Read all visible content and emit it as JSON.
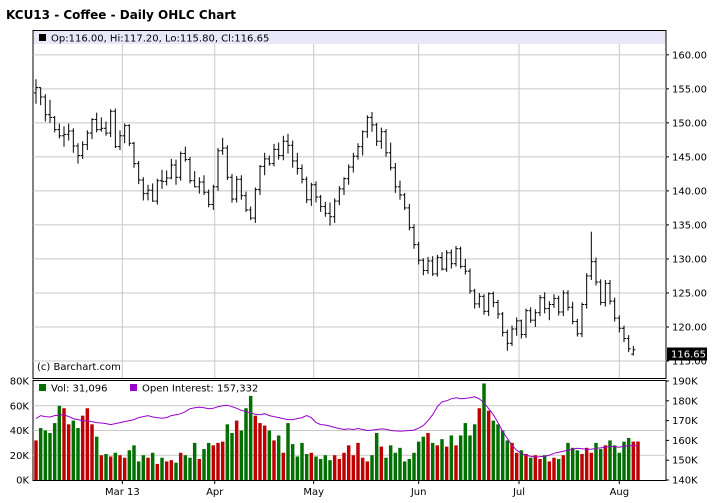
{
  "chart_data": {
    "type": "ohlc",
    "title": "KCU13 - Coffee - Daily OHLC Chart",
    "symbol": "KCU13",
    "last_quote": {
      "open": "116.00",
      "high": "117.20",
      "low": "115.80",
      "close": "116.65"
    },
    "info_line": "Op:116.00, Hi:117.20, Lo:115.80, Cl:116.65",
    "watermark": "(c) Barchart.com",
    "last_price_label": "116.65",
    "price_axis": {
      "ylim": [
        112.5,
        163.5
      ],
      "ticks": [
        "115.00",
        "120.00",
        "125.00",
        "130.00",
        "135.00",
        "140.00",
        "145.00",
        "150.00",
        "155.00",
        "160.00"
      ]
    },
    "x_axis": {
      "months": [
        {
          "label": "Mar 13",
          "day": 18.5
        },
        {
          "label": "Apr",
          "day": 38.3
        },
        {
          "label": "May",
          "day": 59.5
        },
        {
          "label": "Jun",
          "day": 82.0
        },
        {
          "label": "Jul",
          "day": 103.5
        },
        {
          "label": "Aug",
          "day": 125.0
        }
      ],
      "day_range": [
        0,
        129
      ]
    },
    "volume_axis": {
      "ylim": [
        0,
        80000
      ],
      "ticks": [
        "0K",
        "20K",
        "40K",
        "60K",
        "80K"
      ]
    },
    "oi_axis": {
      "ylim": [
        140000,
        190000
      ],
      "ticks": [
        "140K",
        "150K",
        "160K",
        "170K",
        "180K",
        "190K"
      ]
    },
    "volume_legend": "Vol: 31,096",
    "oi_legend": "Open Interest: 157,332",
    "colors": {
      "up_volume": "#c00000",
      "down_volume": "#007000",
      "open_interest": "#9900cc",
      "last_price_bg": "#000000",
      "panel_border": "#000000",
      "header_bg": "#e8e8f8"
    },
    "ohlc": [
      [
        154.4,
        156.4,
        152.8,
        155.2
      ],
      [
        155.2,
        155.2,
        152.6,
        153.8
      ],
      [
        153.8,
        154.2,
        150.2,
        151.2
      ],
      [
        151.2,
        153.4,
        150.0,
        150.8
      ],
      [
        150.8,
        151.0,
        148.6,
        149.0
      ],
      [
        149.0,
        149.9,
        147.7,
        148.1
      ],
      [
        148.1,
        149.5,
        146.5,
        148.3
      ],
      [
        148.3,
        149.9,
        147.4,
        148.8
      ],
      [
        148.8,
        149.2,
        145.6,
        146.6
      ],
      [
        146.6,
        147.0,
        144.0,
        145.2
      ],
      [
        145.2,
        147.3,
        144.7,
        146.8
      ],
      [
        146.8,
        148.9,
        146.0,
        148.5
      ],
      [
        148.5,
        150.7,
        147.6,
        150.5
      ],
      [
        150.5,
        151.5,
        148.6,
        149.0
      ],
      [
        149.0,
        150.8,
        148.7,
        149.2
      ],
      [
        149.2,
        150.2,
        148.1,
        148.5
      ],
      [
        148.5,
        152.0,
        147.9,
        151.7
      ],
      [
        151.7,
        152.1,
        146.3,
        146.5
      ],
      [
        146.5,
        148.9,
        146.0,
        148.1
      ],
      [
        148.1,
        149.9,
        147.0,
        149.6
      ],
      [
        149.6,
        149.8,
        146.6,
        147.0
      ],
      [
        147.0,
        147.2,
        143.4,
        144.0
      ],
      [
        144.0,
        144.4,
        141.0,
        141.6
      ],
      [
        141.6,
        142.0,
        138.6,
        139.6
      ],
      [
        139.6,
        140.9,
        138.6,
        140.1
      ],
      [
        140.1,
        141.1,
        138.4,
        138.5
      ],
      [
        138.5,
        141.8,
        138.0,
        141.5
      ],
      [
        141.5,
        143.1,
        140.3,
        141.4
      ],
      [
        141.4,
        143.0,
        140.8,
        141.9
      ],
      [
        141.9,
        144.7,
        141.7,
        143.8
      ],
      [
        143.8,
        144.6,
        140.9,
        142.0
      ],
      [
        142.0,
        145.8,
        141.5,
        145.5
      ],
      [
        145.5,
        146.5,
        144.3,
        144.6
      ],
      [
        144.6,
        145.0,
        141.1,
        141.5
      ],
      [
        141.5,
        142.9,
        140.5,
        140.6
      ],
      [
        140.6,
        142.0,
        139.6,
        141.3
      ],
      [
        141.3,
        142.3,
        139.4,
        139.8
      ],
      [
        139.8,
        140.2,
        137.6,
        138.0
      ],
      [
        138.0,
        140.9,
        137.2,
        140.6
      ],
      [
        140.6,
        146.3,
        140.0,
        145.9
      ],
      [
        145.9,
        147.8,
        145.3,
        146.3
      ],
      [
        146.3,
        146.7,
        141.6,
        142.0
      ],
      [
        142.0,
        142.5,
        138.3,
        138.8
      ],
      [
        138.8,
        142.2,
        138.3,
        141.7
      ],
      [
        141.7,
        142.3,
        138.7,
        139.3
      ],
      [
        139.3,
        139.9,
        136.9,
        137.2
      ],
      [
        137.2,
        137.7,
        135.7,
        136.0
      ],
      [
        136.0,
        140.5,
        135.3,
        140.2
      ],
      [
        140.2,
        143.8,
        139.4,
        143.6
      ],
      [
        143.6,
        145.6,
        142.3,
        144.7
      ],
      [
        144.7,
        145.2,
        143.7,
        144.0
      ],
      [
        144.0,
        146.9,
        143.6,
        146.1
      ],
      [
        146.1,
        147.1,
        144.6,
        145.2
      ],
      [
        145.2,
        148.1,
        144.5,
        147.3
      ],
      [
        147.3,
        148.4,
        145.5,
        146.7
      ],
      [
        146.7,
        147.4,
        143.4,
        144.4
      ],
      [
        144.4,
        145.6,
        142.4,
        143.3
      ],
      [
        143.3,
        143.9,
        141.1,
        141.7
      ],
      [
        141.7,
        142.1,
        138.2,
        138.7
      ],
      [
        138.7,
        141.2,
        137.8,
        140.9
      ],
      [
        140.9,
        141.4,
        138.3,
        139.1
      ],
      [
        139.1,
        139.4,
        136.9,
        137.7
      ],
      [
        137.7,
        138.4,
        136.2,
        136.7
      ],
      [
        136.7,
        138.3,
        134.9,
        136.2
      ],
      [
        136.2,
        138.9,
        135.3,
        138.5
      ],
      [
        138.5,
        140.7,
        137.9,
        140.3
      ],
      [
        140.3,
        142.0,
        139.4,
        141.8
      ],
      [
        141.8,
        143.9,
        140.9,
        143.5
      ],
      [
        143.5,
        145.6,
        142.7,
        145.1
      ],
      [
        145.1,
        147.0,
        144.6,
        146.5
      ],
      [
        146.5,
        148.9,
        145.2,
        148.7
      ],
      [
        148.7,
        151.1,
        147.8,
        150.8
      ],
      [
        150.8,
        151.6,
        148.7,
        149.7
      ],
      [
        149.7,
        150.0,
        146.6,
        147.3
      ],
      [
        147.3,
        149.3,
        146.2,
        148.7
      ],
      [
        148.7,
        149.1,
        145.0,
        145.6
      ],
      [
        145.6,
        147.1,
        143.0,
        143.4
      ],
      [
        143.4,
        144.1,
        139.7,
        140.6
      ],
      [
        140.6,
        141.5,
        138.7,
        139.4
      ],
      [
        139.4,
        139.7,
        137.2,
        137.5
      ],
      [
        137.5,
        138.1,
        134.2,
        134.6
      ],
      [
        134.6,
        135.1,
        131.5,
        132.1
      ],
      [
        132.1,
        132.5,
        129.2,
        129.8
      ],
      [
        129.8,
        130.1,
        127.6,
        128.3
      ],
      [
        128.3,
        130.3,
        127.8,
        129.7
      ],
      [
        129.7,
        130.4,
        127.5,
        127.8
      ],
      [
        127.8,
        130.6,
        127.4,
        130.2
      ],
      [
        130.2,
        131.0,
        128.3,
        128.5
      ],
      [
        128.5,
        131.3,
        128.1,
        130.9
      ],
      [
        130.9,
        131.4,
        128.6,
        129.3
      ],
      [
        129.3,
        131.9,
        128.9,
        131.5
      ],
      [
        131.5,
        131.8,
        128.6,
        128.9
      ],
      [
        128.9,
        130.0,
        127.7,
        128.2
      ],
      [
        128.2,
        128.6,
        124.9,
        125.3
      ],
      [
        125.3,
        125.6,
        122.7,
        123.4
      ],
      [
        123.4,
        125.0,
        122.8,
        124.5
      ],
      [
        124.5,
        124.8,
        121.8,
        122.3
      ],
      [
        122.3,
        125.1,
        121.6,
        124.9
      ],
      [
        124.9,
        125.2,
        122.9,
        123.6
      ],
      [
        123.6,
        124.0,
        121.2,
        121.9
      ],
      [
        121.9,
        122.2,
        118.6,
        119.2
      ],
      [
        119.2,
        119.6,
        116.5,
        117.6
      ],
      [
        117.6,
        120.2,
        117.2,
        119.7
      ],
      [
        119.7,
        121.4,
        118.7,
        120.9
      ],
      [
        120.9,
        121.1,
        118.3,
        118.9
      ],
      [
        118.9,
        122.7,
        118.4,
        122.4
      ],
      [
        122.4,
        122.9,
        120.6,
        121.0
      ],
      [
        121.0,
        122.6,
        120.0,
        122.1
      ],
      [
        122.1,
        124.7,
        121.6,
        124.3
      ],
      [
        124.3,
        125.1,
        122.0,
        122.7
      ],
      [
        122.7,
        123.8,
        121.0,
        123.3
      ],
      [
        123.3,
        124.8,
        122.8,
        124.2
      ],
      [
        124.2,
        124.6,
        121.7,
        122.2
      ],
      [
        122.2,
        125.4,
        121.6,
        125.0
      ],
      [
        125.0,
        125.4,
        122.4,
        122.9
      ],
      [
        122.9,
        123.7,
        120.4,
        120.8
      ],
      [
        120.8,
        121.2,
        118.6,
        119.0
      ],
      [
        119.0,
        123.6,
        118.5,
        123.3
      ],
      [
        123.3,
        127.9,
        122.7,
        127.5
      ],
      [
        127.5,
        134.0,
        126.9,
        129.6
      ],
      [
        129.6,
        130.2,
        126.1,
        126.6
      ],
      [
        126.6,
        127.0,
        123.2,
        123.6
      ],
      [
        123.6,
        126.9,
        123.0,
        126.4
      ],
      [
        126.4,
        126.9,
        123.3,
        123.8
      ],
      [
        123.8,
        124.3,
        120.8,
        121.3
      ],
      [
        121.3,
        121.7,
        119.2,
        119.8
      ],
      [
        119.8,
        120.2,
        117.8,
        118.3
      ],
      [
        118.3,
        118.8,
        116.3,
        116.8
      ],
      [
        116.0,
        117.2,
        115.8,
        116.65
      ]
    ],
    "volume": [
      32000,
      42000,
      40000,
      38000,
      46000,
      60000,
      58000,
      45000,
      48000,
      42000,
      52000,
      58000,
      45000,
      35000,
      20000,
      21000,
      19000,
      22000,
      20000,
      18000,
      24000,
      28000,
      15000,
      20000,
      18000,
      22000,
      13000,
      18000,
      15000,
      16000,
      14000,
      22000,
      20000,
      18000,
      30000,
      17000,
      25000,
      30000,
      28000,
      30000,
      31000,
      45000,
      38000,
      48000,
      40000,
      58000,
      68000,
      52000,
      46000,
      44000,
      40000,
      32000,
      36000,
      22000,
      46000,
      29000,
      19000,
      30000,
      21000,
      22000,
      19000,
      17000,
      20000,
      16000,
      20000,
      17000,
      22000,
      28000,
      20000,
      30000,
      18000,
      15000,
      20000,
      38000,
      27000,
      18000,
      28000,
      22000,
      26000,
      15000,
      17000,
      22000,
      31000,
      35000,
      38000,
      30000,
      28000,
      33000,
      27000,
      36000,
      28000,
      36000,
      46000,
      36000,
      45000,
      58000,
      78000,
      56000,
      48000,
      45000,
      40000,
      32000,
      30000,
      22000,
      24000,
      21000,
      18000,
      20000,
      17000,
      20000,
      15000,
      18000,
      17000,
      20000,
      30000,
      26000,
      24000,
      21000,
      26000,
      22000,
      30000,
      25000,
      28000,
      32000,
      28000,
      22000,
      31000,
      34000,
      31000,
      31096
    ],
    "open_interest": [
      171000,
      172500,
      172000,
      171800,
      172500,
      172800,
      173000,
      172000,
      171000,
      170500,
      170000,
      169800,
      169500,
      169000,
      168800,
      168500,
      168000,
      168500,
      169000,
      169500,
      170000,
      170500,
      171500,
      172000,
      172500,
      171800,
      171500,
      171200,
      171500,
      172500,
      173000,
      173500,
      174500,
      176000,
      176500,
      176700,
      176500,
      176000,
      176200,
      177000,
      177500,
      177800,
      177000,
      176200,
      175200,
      174500,
      174000,
      173200,
      173000,
      173500,
      172500,
      172000,
      171500,
      171000,
      170500,
      170500,
      171000,
      171500,
      172500,
      171500,
      169000,
      168000,
      167800,
      167200,
      166500,
      166000,
      165500,
      165800,
      165500,
      166000,
      165500,
      165000,
      165200,
      165500,
      165800,
      165600,
      165000,
      164800,
      164700,
      164800,
      165000,
      165200,
      166200,
      167500,
      170000,
      173000,
      177000,
      179500,
      180000,
      181000,
      181500,
      181000,
      181200,
      181500,
      182000,
      181000,
      179000,
      176000,
      173000,
      169000,
      164500,
      161000,
      157500,
      155000,
      153500,
      152500,
      152000,
      151500,
      151800,
      152000,
      152500,
      153500,
      154000,
      154500,
      155000,
      155500,
      156000,
      155800,
      155500,
      155500,
      156000,
      156200,
      156500,
      157000,
      156800,
      156500,
      157000,
      157200,
      157400,
      157332
    ]
  }
}
